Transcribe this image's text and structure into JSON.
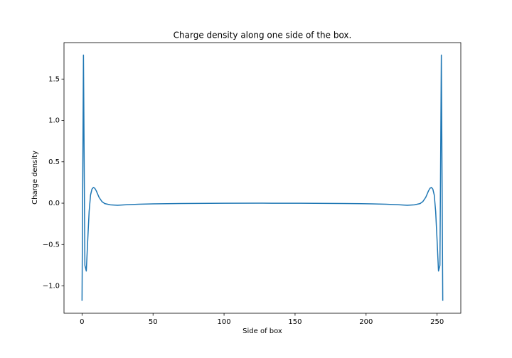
{
  "chart_data": {
    "type": "line",
    "title": "Charge density along one side of the box.",
    "xlabel": "Side of box",
    "ylabel": "Charge density",
    "color": "#1f77b4",
    "x": [
      0,
      1,
      2,
      3,
      4,
      5,
      6,
      7,
      8,
      9,
      10,
      12,
      14,
      16,
      20,
      25,
      30,
      40,
      50,
      70,
      100,
      127,
      154,
      184,
      204,
      214,
      224,
      229,
      234,
      238,
      240,
      242,
      244,
      245,
      246,
      247,
      248,
      249,
      250,
      251,
      252,
      253,
      254
    ],
    "values": [
      -1.18,
      1.79,
      -0.75,
      -0.82,
      -0.45,
      -0.1,
      0.1,
      0.17,
      0.19,
      0.18,
      0.15,
      0.07,
      0.02,
      -0.005,
      -0.02,
      -0.025,
      -0.02,
      -0.013,
      -0.008,
      -0.004,
      -0.001,
      0,
      -0.001,
      -0.004,
      -0.008,
      -0.013,
      -0.02,
      -0.025,
      -0.02,
      -0.005,
      0.02,
      0.07,
      0.15,
      0.18,
      0.19,
      0.17,
      0.1,
      -0.1,
      -0.45,
      -0.82,
      -0.75,
      1.79,
      -1.18
    ],
    "xlim": [
      -12.7,
      266.7
    ],
    "ylim": [
      -1.33,
      1.94
    ],
    "xticks": [
      0,
      50,
      100,
      150,
      200,
      250
    ],
    "yticks": [
      {
        "value": -1,
        "label": "−1.0"
      },
      {
        "value": -0.5,
        "label": "−0.5"
      },
      {
        "value": 0,
        "label": "0.0"
      },
      {
        "value": 0.5,
        "label": "0.5"
      },
      {
        "value": 1,
        "label": "1.0"
      },
      {
        "value": 1.5,
        "label": "1.5"
      }
    ],
    "grid": false
  }
}
